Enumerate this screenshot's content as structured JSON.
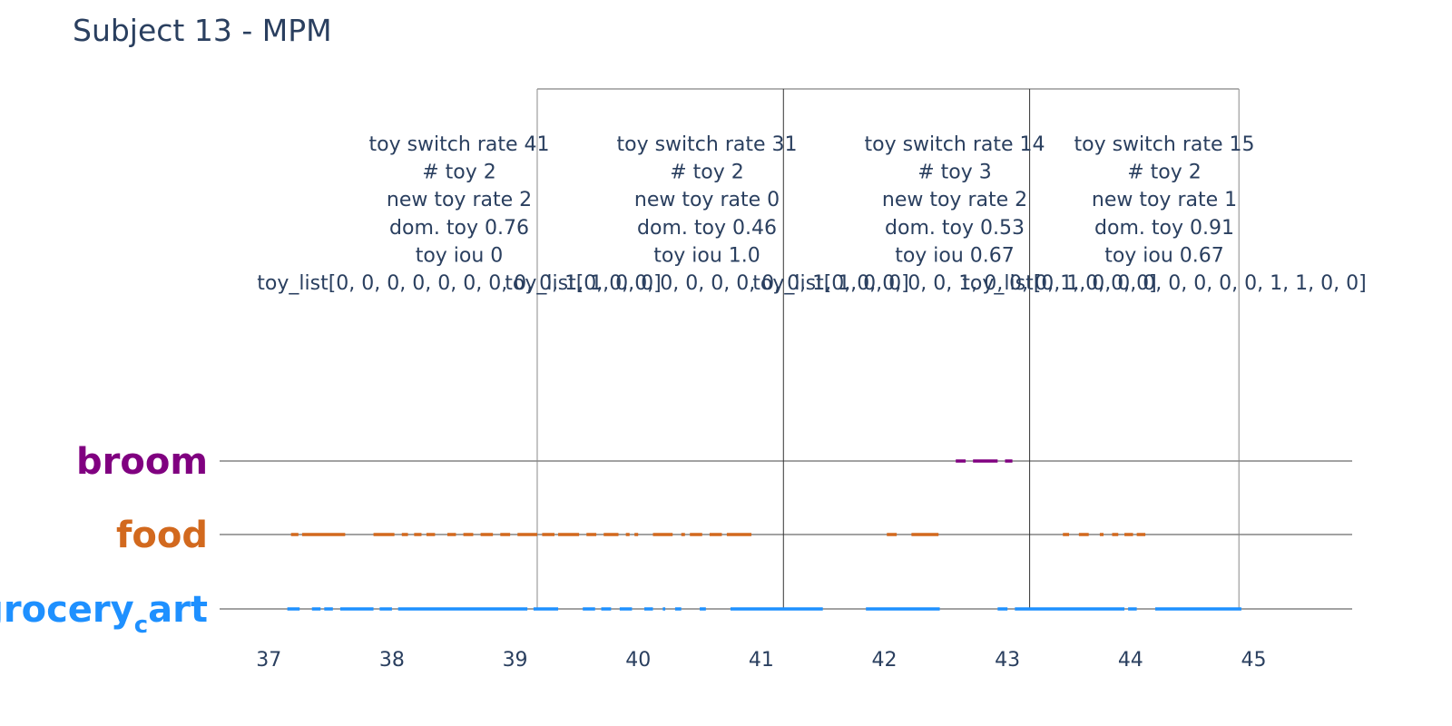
{
  "chart_data": {
    "type": "timeline",
    "title": "Subject 13 - MPM",
    "x_ticks": [
      37,
      38,
      39,
      40,
      41,
      42,
      43,
      44,
      45
    ],
    "xlim": [
      36.6,
      45.8
    ],
    "categories": [
      {
        "key": "broom",
        "label_main": "broom",
        "label_sub": "",
        "label_rest": "",
        "color": "#800080"
      },
      {
        "key": "food",
        "label_main": "food",
        "label_sub": "",
        "label_rest": "",
        "color": "#d2691e"
      },
      {
        "key": "grocery_cart",
        "label_main": "grocery",
        "label_sub": "c",
        "label_rest": "art",
        "color": "#1e90ff"
      }
    ],
    "series": [
      {
        "category": "broom",
        "segments": [
          [
            42.58,
            42.66
          ],
          [
            42.72,
            42.92
          ],
          [
            42.98,
            43.04
          ]
        ]
      },
      {
        "category": "food",
        "segments": [
          [
            37.18,
            37.24
          ],
          [
            37.27,
            37.62
          ],
          [
            37.85,
            38.02
          ],
          [
            38.08,
            38.13
          ],
          [
            38.18,
            38.24
          ],
          [
            38.28,
            38.35
          ],
          [
            38.45,
            38.52
          ],
          [
            38.58,
            38.66
          ],
          [
            38.72,
            38.82
          ],
          [
            38.88,
            38.96
          ],
          [
            39.02,
            39.18
          ],
          [
            39.22,
            39.32
          ],
          [
            39.35,
            39.52
          ],
          [
            39.58,
            39.66
          ],
          [
            39.72,
            39.84
          ],
          [
            39.9,
            39.93
          ],
          [
            39.97,
            40.0
          ],
          [
            40.12,
            40.28
          ],
          [
            40.35,
            40.38
          ],
          [
            40.42,
            40.52
          ],
          [
            40.58,
            40.68
          ],
          [
            40.72,
            40.92
          ],
          [
            42.02,
            42.1
          ],
          [
            42.22,
            42.44
          ],
          [
            43.45,
            43.5
          ],
          [
            43.58,
            43.66
          ],
          [
            43.75,
            43.78
          ],
          [
            43.85,
            43.9
          ],
          [
            43.95,
            44.02
          ],
          [
            44.05,
            44.12
          ]
        ]
      },
      {
        "category": "grocery_cart",
        "segments": [
          [
            37.15,
            37.25
          ],
          [
            37.35,
            37.42
          ],
          [
            37.45,
            37.52
          ],
          [
            37.58,
            37.85
          ],
          [
            37.9,
            38.0
          ],
          [
            38.05,
            39.1
          ],
          [
            39.15,
            39.35
          ],
          [
            39.55,
            39.65
          ],
          [
            39.7,
            39.78
          ],
          [
            39.85,
            39.95
          ],
          [
            40.05,
            40.12
          ],
          [
            40.2,
            40.22
          ],
          [
            40.3,
            40.35
          ],
          [
            40.5,
            40.55
          ],
          [
            40.75,
            41.5
          ],
          [
            41.85,
            42.45
          ],
          [
            42.92,
            43.0
          ],
          [
            43.06,
            43.95
          ],
          [
            43.98,
            44.05
          ],
          [
            44.2,
            44.9
          ]
        ]
      }
    ],
    "segments_box": [
      {
        "x0": 39.18,
        "x1": 41.18,
        "text": [
          "toy switch rate 41",
          "# toy 2",
          "new toy rate 2",
          "dom. toy 0.76",
          "toy iou 0",
          "toy_list[0, 0, 0, 0, 0, 0, 0, 0, 0, 1, 1, 0, 0]"
        ]
      },
      {
        "x0": 41.18,
        "x1": 43.18,
        "text": [
          "toy switch rate 31",
          "# toy 2",
          "new toy rate 0",
          "dom. toy 0.46",
          "toy iou 1.0",
          "toy_list[0, 0, 0, 0, 0, 0, 0, 0, 0, 1, 1, 0, 0]"
        ]
      },
      {
        "x0": 43.18,
        "x1": 44.88,
        "text": [
          "toy switch rate 14",
          "# toy 3",
          "new toy rate 2",
          "dom. toy 0.53",
          "toy iou 0.67",
          "toy_list[0, 0, 0, 0, 0, 1, 0, 0, 0, 1, 0, 0, 0]"
        ]
      },
      {
        "x0": 44.88,
        "x1": 44.88,
        "text": [
          "toy switch rate 15",
          "# toy 2",
          "new toy rate 1",
          "dom. toy 0.91",
          "toy iou 0.67",
          "toy_list[0, 1, 0, 0, 0, 0, 0, 0, 0, 1, 1, 0, 0]"
        ]
      }
    ],
    "annotations": [
      {
        "x": 39.18,
        "lines": [
          "toy switch rate 41",
          "# toy 2",
          "new toy rate 2",
          "dom. toy 0.76",
          "toy iou 0",
          "toy_list[0, 0, 0, 0, 0, 0, 0, 0, 0, 1, 1, 0, 0]"
        ]
      },
      {
        "x": 41.18,
        "lines": [
          "toy switch rate 31",
          "# toy 2",
          "new toy rate 0",
          "dom. toy 0.46",
          "toy iou 1.0",
          "toy_list[0, 0, 0, 0, 0, 0, 0, 0, 0, 1, 1, 0, 0]"
        ]
      },
      {
        "x": 43.18,
        "lines": [
          "toy switch rate 14",
          "# toy 3",
          "new toy rate 2",
          "dom. toy 0.53",
          "toy iou 0.67",
          "toy_list[0, 0, 0, 0, 0, 1, 0, 0, 0, 1, 0, 0, 0]"
        ]
      },
      {
        "x": 44.88,
        "lines": [
          "toy switch rate 15",
          "# toy 2",
          "new toy rate 1",
          "dom. toy 0.91",
          "toy iou 0.67",
          "toy_list[0, 1, 0, 0, 0, 0, 0, 0, 0, 1, 1, 0, 0]"
        ]
      }
    ],
    "boundaries": [
      39.18,
      41.18,
      43.18,
      44.88
    ]
  }
}
